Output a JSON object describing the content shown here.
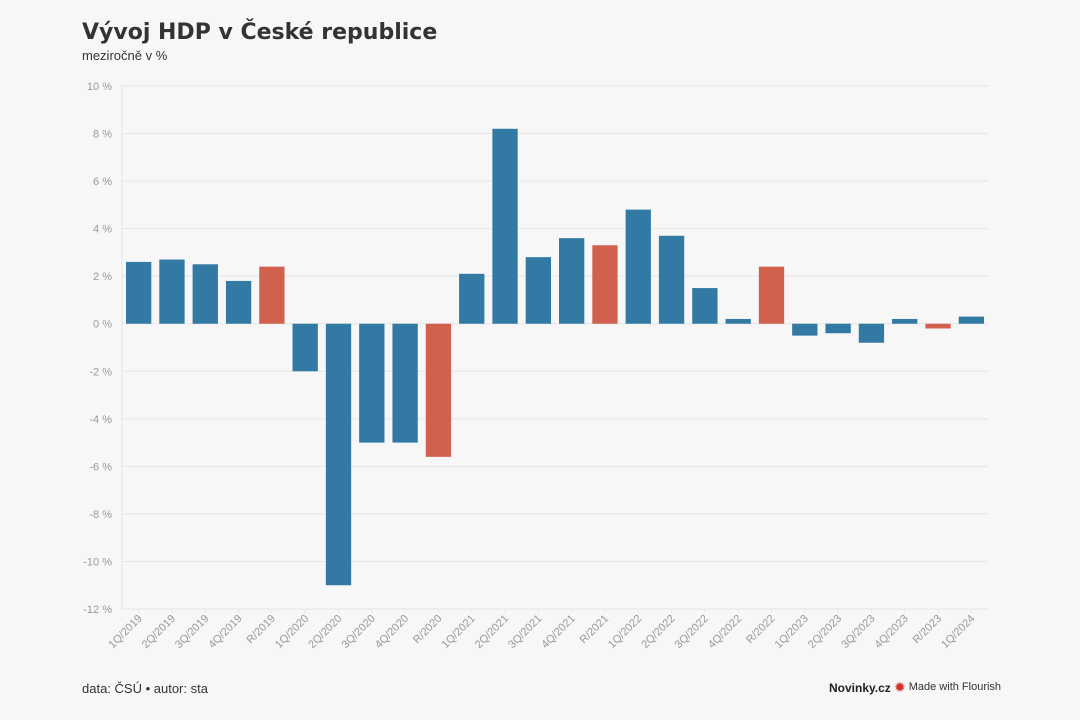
{
  "header": {
    "title": "Vývoj HDP v České republice",
    "subtitle": "meziročně v %"
  },
  "footer": {
    "source": "data: ČSÚ • autor: sta",
    "brand": "Novinky.cz",
    "credit": "Made with Flourish",
    "credit_icon": "flourish-burst-icon"
  },
  "colors": {
    "quarter": "#3279a3",
    "annual": "#d2604f",
    "grid": "#e6e6e6",
    "axis_text": "#999999"
  },
  "chart_data": {
    "type": "bar",
    "title": "Vývoj HDP v České republice",
    "subtitle": "meziročně v %",
    "xlabel": "",
    "ylabel": "",
    "ylim": [
      -12,
      10
    ],
    "yticks": [
      10,
      8,
      6,
      4,
      2,
      0,
      -2,
      -4,
      -6,
      -8,
      -10,
      -12
    ],
    "ytick_labels": [
      "10 %",
      "8 %",
      "6 %",
      "4 %",
      "2 %",
      "0 %",
      "-2 %",
      "-4 %",
      "-6 %",
      "-8 %",
      "-10 %",
      "-12 %"
    ],
    "grid": true,
    "categories": [
      "1Q/2019",
      "2Q/2019",
      "3Q/2019",
      "4Q/2019",
      "R/2019",
      "1Q/2020",
      "2Q/2020",
      "3Q/2020",
      "4Q/2020",
      "R/2020",
      "1Q/2021",
      "2Q/2021",
      "3Q/2021",
      "4Q/2021",
      "R/2021",
      "1Q/2022",
      "2Q/2022",
      "3Q/2022",
      "4Q/2022",
      "R/2022",
      "1Q/2023",
      "2Q/2023",
      "3Q/2023",
      "4Q/2023",
      "R/2023",
      "1Q/2024"
    ],
    "values": [
      2.6,
      2.7,
      2.5,
      1.8,
      2.4,
      -2.0,
      -11.0,
      -5.0,
      -5.0,
      -5.6,
      2.1,
      8.2,
      2.8,
      3.6,
      3.3,
      4.8,
      3.7,
      1.5,
      0.2,
      2.4,
      -0.5,
      -0.4,
      -0.8,
      0.2,
      -0.2,
      0.3
    ],
    "annual_flags": [
      false,
      false,
      false,
      false,
      true,
      false,
      false,
      false,
      false,
      true,
      false,
      false,
      false,
      false,
      true,
      false,
      false,
      false,
      false,
      true,
      false,
      false,
      false,
      false,
      true,
      false
    ]
  }
}
